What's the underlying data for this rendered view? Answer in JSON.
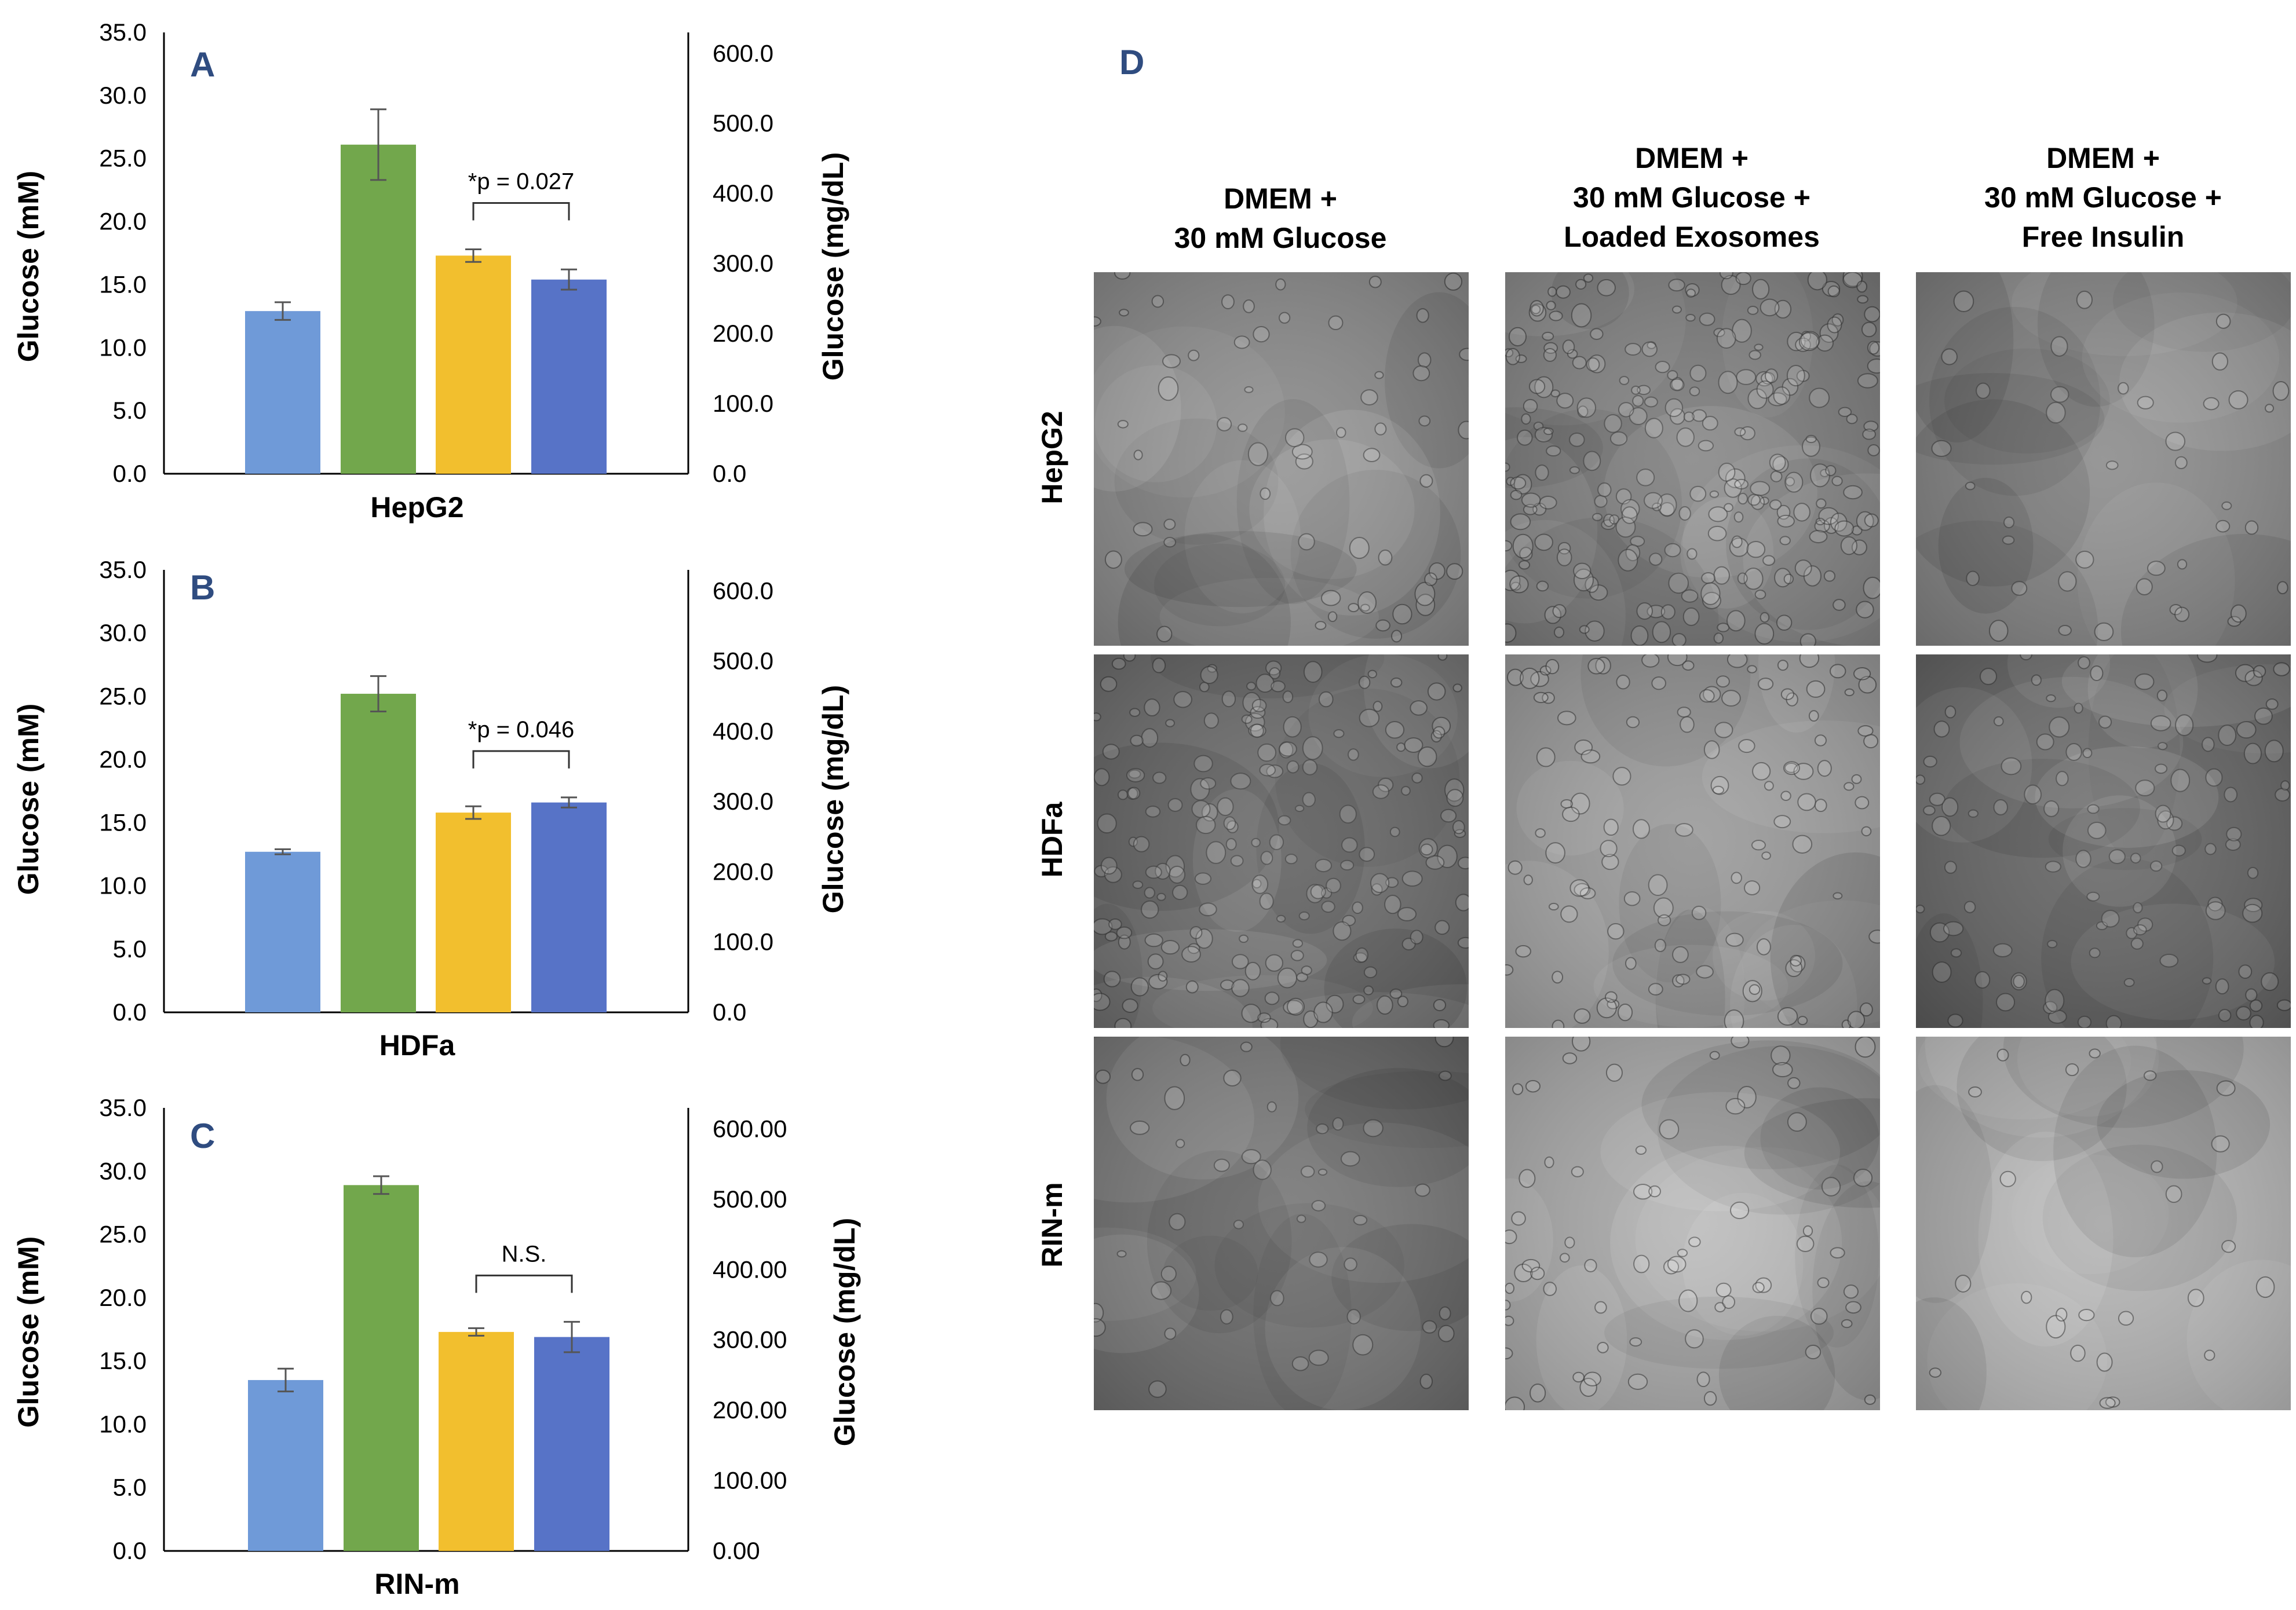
{
  "colors": {
    "bar1": "#6f9ad8",
    "bar2": "#72a74c",
    "bar3": "#f2bf2e",
    "bar4": "#5773c7",
    "error": "#555555",
    "panel_letter": "#2f4c80"
  },
  "chart_data": [
    {
      "type": "bar",
      "panel": "A",
      "xlabel": "HepG2",
      "ylabel": "Glucose (mM)",
      "ylabel_right": "Glucose (mg/dL)",
      "ylim": [
        0,
        35
      ],
      "yticks": [
        "0.0",
        "5.0",
        "10.0",
        "15.0",
        "20.0",
        "25.0",
        "30.0",
        "35.0"
      ],
      "ylim_right": [
        0,
        600
      ],
      "yticks_right": [
        "0.0",
        "100.0",
        "200.0",
        "300.0",
        "400.0",
        "500.0",
        "600.0"
      ],
      "values": [
        12.9,
        26.1,
        17.3,
        15.4
      ],
      "errors": [
        0.7,
        2.8,
        0.5,
        0.8
      ],
      "annotation": {
        "text": "*p = 0.027",
        "between": [
          2,
          3
        ]
      }
    },
    {
      "type": "bar",
      "panel": "B",
      "xlabel": "HDFa",
      "ylabel": "Glucose (mM)",
      "ylabel_right": "Glucose (mg/dL)",
      "ylim": [
        0,
        35
      ],
      "yticks": [
        "0.0",
        "5.0",
        "10.0",
        "15.0",
        "20.0",
        "25.0",
        "30.0",
        "35.0"
      ],
      "ylim_right": [
        0,
        600
      ],
      "yticks_right": [
        "0.0",
        "100.0",
        "200.0",
        "300.0",
        "400.0",
        "500.0",
        "600.0"
      ],
      "values": [
        12.7,
        25.2,
        15.8,
        16.6
      ],
      "errors": [
        0.2,
        1.4,
        0.5,
        0.4
      ],
      "annotation": {
        "text": "*p = 0.046",
        "between": [
          2,
          3
        ]
      }
    },
    {
      "type": "bar",
      "panel": "C",
      "xlabel": "RIN-m",
      "ylabel": "Glucose (mM)",
      "ylabel_right": "Glucose (mg/dL)",
      "ylim": [
        0,
        35
      ],
      "yticks": [
        "0.0",
        "5.0",
        "10.0",
        "15.0",
        "20.0",
        "25.0",
        "30.0",
        "35.0"
      ],
      "ylim_right": [
        0,
        600
      ],
      "yticks_right": [
        "0.00",
        "100.00",
        "200.00",
        "300.00",
        "400.00",
        "500.00",
        "600.00"
      ],
      "values": [
        13.5,
        28.9,
        17.3,
        16.9
      ],
      "errors": [
        0.9,
        0.7,
        0.3,
        1.2
      ],
      "annotation": {
        "text": "N.S.",
        "between": [
          2,
          3
        ]
      }
    }
  ],
  "panel_d": {
    "letter": "D",
    "columns": [
      [
        "DMEM +",
        "30 mM Glucose"
      ],
      [
        "DMEM +",
        "30 mM Glucose +",
        "Loaded Exosomes"
      ],
      [
        "DMEM  +",
        "30 mM Glucose +",
        "Free Insulin"
      ]
    ],
    "rows": [
      "HepG2",
      "HDFa",
      "RIN-m"
    ],
    "tiles": [
      {
        "base": "#8a8a8a",
        "density": 60
      },
      {
        "base": "#7b7b7b",
        "density": 260
      },
      {
        "base": "#8c8c8c",
        "density": 40
      },
      {
        "base": "#6c6c6c",
        "density": 200
      },
      {
        "base": "#9a9a9a",
        "density": 120
      },
      {
        "base": "#646464",
        "density": 110
      },
      {
        "base": "#6e6e6e",
        "density": 45
      },
      {
        "base": "#a8a8a8",
        "density": 70
      },
      {
        "base": "#b4b4b4",
        "density": 25
      }
    ]
  }
}
